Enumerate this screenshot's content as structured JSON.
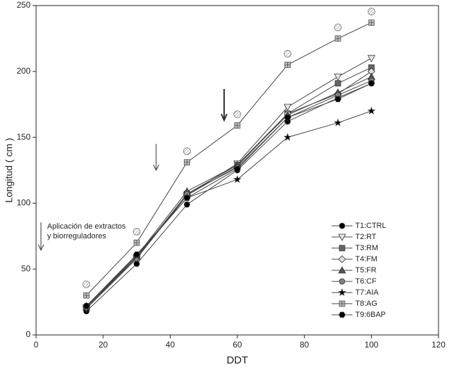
{
  "chart_data": {
    "type": "line",
    "x_label": "DDT",
    "y_label": "Longitud ( cm )",
    "annotation": [
      "Aplicación de extractos",
      "y biorreguladores"
    ],
    "x": [
      15,
      30,
      45,
      60,
      75,
      90,
      100
    ],
    "xlim": [
      0,
      120
    ],
    "xticks": [
      0,
      20,
      40,
      60,
      80,
      100,
      120
    ],
    "ylim": [
      0,
      250
    ],
    "yticks": [
      0,
      50,
      100,
      150,
      200,
      250
    ],
    "line_color": "#444444",
    "legend": "lower right",
    "series": [
      {
        "name": "T1:CTRL",
        "marker": "circle",
        "color": "#000000",
        "values": [
          18,
          54,
          99,
          125,
          162,
          180,
          191
        ]
      },
      {
        "name": "T2:RT",
        "marker": "triangle-down",
        "color": "#e6e6e6",
        "values": [
          20,
          58,
          106,
          130,
          173,
          196,
          210
        ]
      },
      {
        "name": "T3:RM",
        "marker": "square",
        "color": "#666666",
        "values": [
          21,
          59,
          107,
          129,
          168,
          191,
          203
        ]
      },
      {
        "name": "T4:FM",
        "marker": "diamond",
        "color": "#dddddd",
        "values": [
          21,
          59,
          106,
          128,
          168,
          183,
          200
        ]
      },
      {
        "name": "T5:FR",
        "marker": "triangle-up",
        "color": "#555555",
        "values": [
          21,
          60,
          109,
          129,
          167,
          184,
          196
        ]
      },
      {
        "name": "T6:CF",
        "marker": "circle",
        "color": "#808080",
        "values": [
          21,
          58,
          107,
          127,
          165,
          182,
          193
        ]
      },
      {
        "name": "T7:AIA",
        "marker": "star",
        "color": "#000000",
        "values": [
          22,
          60,
          104,
          118,
          150,
          161,
          170
        ]
      },
      {
        "name": "T8:AG",
        "marker": "square-cross",
        "color": "#bbbbbb",
        "values": [
          30,
          70,
          131,
          159,
          205,
          225,
          237
        ]
      },
      {
        "name": "T9:6BAP",
        "marker": "hexagon",
        "color": "#000000",
        "values": [
          22,
          61,
          104,
          126,
          165,
          179,
          191
        ]
      }
    ]
  }
}
